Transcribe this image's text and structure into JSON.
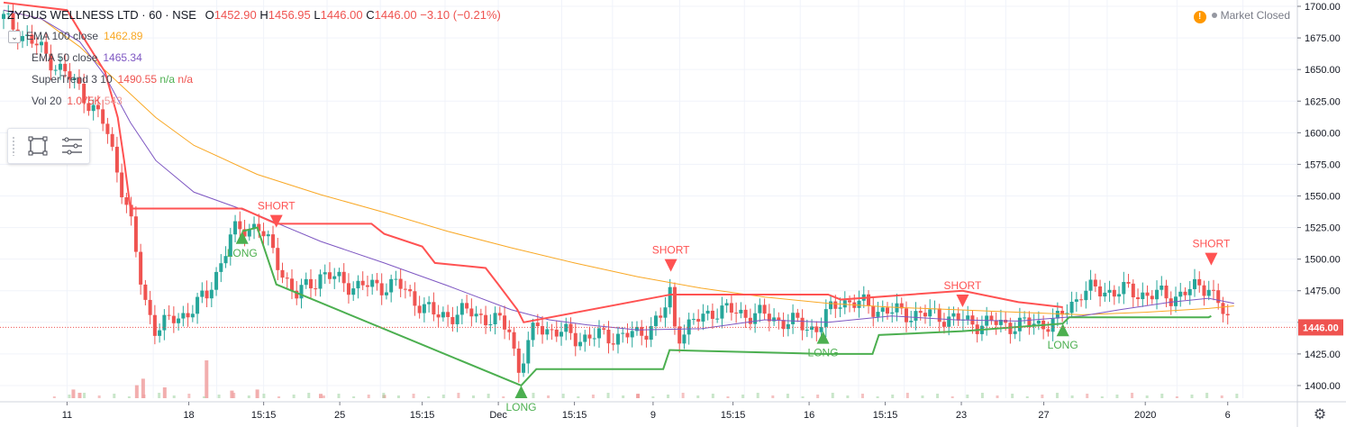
{
  "header": {
    "symbol": "ZYDUS WELLNESS LTD · 60 · NSE",
    "open_label": "O",
    "open": "1452.90",
    "high_label": "H",
    "high": "1456.95",
    "low_label": "L",
    "low": "1446.00",
    "close_label": "C",
    "close": "1446.00",
    "change": "−3.10 (−0.21%)"
  },
  "market_status": "Market Closed",
  "indicators": [
    {
      "name": "EMA 100 close",
      "value": "1462.89",
      "value2": "",
      "value3": "",
      "color": "#f9a825"
    },
    {
      "name": "EMA 50 close",
      "value": "1465.34",
      "value2": "",
      "value3": "",
      "color": "#7e57c2"
    },
    {
      "name": "SuperTrend 3 10",
      "value": "1490.55",
      "value2": "n/a",
      "value3": "n/a",
      "color": "#ef5350"
    },
    {
      "name": "Vol 20",
      "value": "1.075K",
      "value2": "543",
      "value3": "",
      "color": "#ef5350"
    }
  ],
  "toolbox": {
    "icons": [
      "rectangle-icon",
      "list-icon"
    ]
  },
  "chart_data": {
    "type": "candlestick",
    "y_axis": {
      "ticks": [
        1400,
        1425,
        1450,
        1475,
        1500,
        1525,
        1550,
        1575,
        1600,
        1625,
        1650,
        1675,
        1700
      ],
      "labels": [
        "1400.00",
        "1425.00",
        "1450.00",
        "1475.00",
        "1500.00",
        "1525.00",
        "1550.00",
        "1575.00",
        "1600.00",
        "1625.00",
        "1650.00",
        "1675.00",
        "1700.00"
      ],
      "range": [
        1390,
        1705
      ]
    },
    "x_axis": {
      "labels": [
        "11",
        "18",
        "15:15",
        "25",
        "15:15",
        "Dec",
        "15:15",
        "9",
        "15:15",
        "16",
        "15:15",
        "23",
        "27",
        "2020",
        "6"
      ]
    },
    "last_price": "1446.00",
    "colors": {
      "up": "#26a69a",
      "down": "#ef5350",
      "ema100": "#f9a825",
      "ema50": "#7e57c2",
      "st_up": "#4caf50",
      "st_down": "#ff5252",
      "volume": "#ef9a9a"
    },
    "supertrend_signals": [
      {
        "label": "SHORT",
        "type": "short",
        "bar": 0.215,
        "price": 1525
      },
      {
        "label": "LONG",
        "type": "long",
        "bar": 0.188,
        "price": 1522
      },
      {
        "label": "LONG",
        "type": "long",
        "bar": 0.408,
        "price": 1400
      },
      {
        "label": "SHORT",
        "type": "short",
        "bar": 0.526,
        "price": 1490
      },
      {
        "label": "LONG",
        "type": "long",
        "bar": 0.646,
        "price": 1443
      },
      {
        "label": "SHORT",
        "type": "short",
        "bar": 0.756,
        "price": 1462
      },
      {
        "label": "LONG",
        "type": "long",
        "bar": 0.835,
        "price": 1449
      },
      {
        "label": "SHORT",
        "type": "short",
        "bar": 0.952,
        "price": 1495
      }
    ],
    "ema100": [
      [
        0,
        1697
      ],
      [
        0.03,
        1690
      ],
      [
        0.06,
        1668
      ],
      [
        0.09,
        1640
      ],
      [
        0.12,
        1612
      ],
      [
        0.15,
        1590
      ],
      [
        0.2,
        1567
      ],
      [
        0.25,
        1551
      ],
      [
        0.3,
        1537
      ],
      [
        0.35,
        1522
      ],
      [
        0.4,
        1509
      ],
      [
        0.45,
        1497
      ],
      [
        0.5,
        1486
      ],
      [
        0.55,
        1477
      ],
      [
        0.6,
        1470
      ],
      [
        0.65,
        1465
      ],
      [
        0.7,
        1462
      ],
      [
        0.75,
        1460
      ],
      [
        0.8,
        1458
      ],
      [
        0.85,
        1456
      ],
      [
        0.9,
        1458
      ],
      [
        0.95,
        1461
      ],
      [
        0.97,
        1463
      ]
    ],
    "ema50": [
      [
        0,
        1697
      ],
      [
        0.03,
        1690
      ],
      [
        0.06,
        1672
      ],
      [
        0.08,
        1645
      ],
      [
        0.1,
        1608
      ],
      [
        0.12,
        1578
      ],
      [
        0.15,
        1553
      ],
      [
        0.2,
        1535
      ],
      [
        0.25,
        1514
      ],
      [
        0.3,
        1497
      ],
      [
        0.35,
        1479
      ],
      [
        0.4,
        1460
      ],
      [
        0.43,
        1452
      ],
      [
        0.46,
        1448
      ],
      [
        0.5,
        1444
      ],
      [
        0.55,
        1445
      ],
      [
        0.6,
        1452
      ],
      [
        0.65,
        1450
      ],
      [
        0.7,
        1455
      ],
      [
        0.75,
        1452
      ],
      [
        0.8,
        1451
      ],
      [
        0.85,
        1455
      ],
      [
        0.88,
        1460
      ],
      [
        0.92,
        1466
      ],
      [
        0.95,
        1469
      ],
      [
        0.97,
        1465
      ]
    ],
    "st_down": [
      [
        0,
        1703
      ],
      [
        0.05,
        1697
      ],
      [
        0.065,
        1672
      ],
      [
        0.08,
        1648
      ],
      [
        0.09,
        1612
      ],
      [
        0.095,
        1578
      ],
      [
        0.1,
        1540
      ],
      [
        0.188,
        1540
      ],
      [
        0.215,
        1528
      ],
      [
        0.29,
        1528
      ],
      [
        0.3,
        1520
      ],
      [
        0.33,
        1510
      ],
      [
        0.34,
        1497
      ],
      [
        0.38,
        1493
      ],
      [
        0.39,
        1480
      ],
      [
        0.405,
        1460
      ],
      [
        0.41,
        1450
      ],
      [
        0.526,
        1472
      ],
      [
        0.65,
        1472
      ],
      [
        0.66,
        1468
      ],
      [
        0.756,
        1475
      ],
      [
        0.8,
        1466
      ],
      [
        0.835,
        1462
      ]
    ],
    "st_up": [
      [
        0.188,
        1522
      ],
      [
        0.2,
        1525
      ],
      [
        0.215,
        1480
      ],
      [
        0.408,
        1400
      ],
      [
        0.42,
        1413
      ],
      [
        0.52,
        1413
      ],
      [
        0.525,
        1428
      ],
      [
        0.526,
        1428
      ],
      [
        0.646,
        1425
      ],
      [
        0.685,
        1425
      ],
      [
        0.69,
        1440
      ],
      [
        0.756,
        1443
      ],
      [
        0.835,
        1449
      ],
      [
        0.84,
        1454
      ],
      [
        0.95,
        1454
      ],
      [
        0.952,
        1455
      ]
    ],
    "volume": [
      [
        0.055,
        0.08
      ],
      [
        0.06,
        0.05
      ],
      [
        0.105,
        0.12
      ],
      [
        0.11,
        0.18
      ],
      [
        0.127,
        0.1
      ],
      [
        0.16,
        0.35
      ],
      [
        0.18,
        0.07
      ],
      [
        0.2,
        0.08
      ],
      [
        0.25,
        0.04
      ],
      [
        0.3,
        0.03
      ],
      [
        0.5,
        0.04
      ]
    ]
  }
}
